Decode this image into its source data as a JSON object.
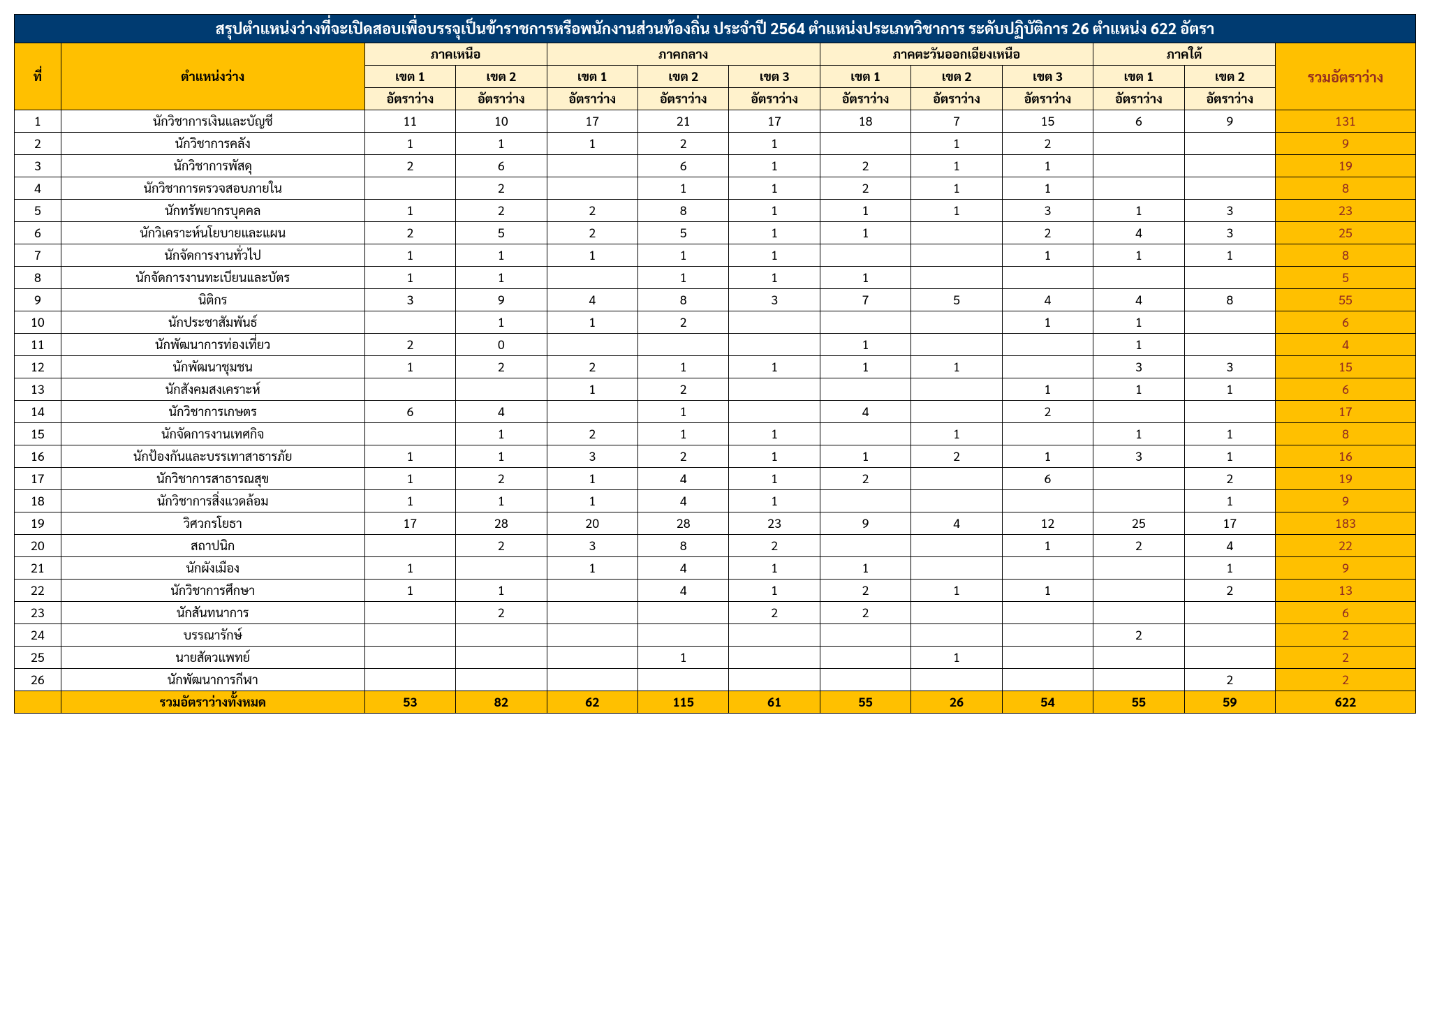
{
  "title": "สรุปตำแหน่งว่างที่จะเปิดสอบเพื่อบรรจุเป็นข้าราชการหรือพนักงานส่วนท้องถิ่น ประจำปี 2564  ตำแหน่งประเภทวิชาการ ระดับปฏิบัติการ 26 ตำแหน่ง 622 อัตรา",
  "headers": {
    "idx": "ที่",
    "position": "ตำแหน่งว่าง",
    "regions": [
      "ภาคเหนือ",
      "ภาคกลาง",
      "ภาคตะวันออกเฉียงเหนือ",
      "ภาคใต้"
    ],
    "region_spans": [
      2,
      3,
      3,
      2
    ],
    "zones": [
      "เขต 1",
      "เขต 2",
      "เขต 1",
      "เขต 2",
      "เขต 3",
      "เขต 1",
      "เขต 2",
      "เขต 3",
      "เขต 1",
      "เขต 2"
    ],
    "vacancy": "อัตราว่าง",
    "total": "รวมอัตราว่าง"
  },
  "rows": [
    {
      "n": "1",
      "pos": "นักวิชาการเงินและบัญชี",
      "v": [
        "11",
        "10",
        "17",
        "21",
        "17",
        "18",
        "7",
        "15",
        "6",
        "9"
      ],
      "t": "131"
    },
    {
      "n": "2",
      "pos": "นักวิชาการคลัง",
      "v": [
        "1",
        "1",
        "1",
        "2",
        "1",
        "",
        "1",
        "2",
        "",
        ""
      ],
      "t": "9"
    },
    {
      "n": "3",
      "pos": "นักวิชาการพัสดุ",
      "v": [
        "2",
        "6",
        "",
        "6",
        "1",
        "2",
        "1",
        "1",
        "",
        ""
      ],
      "t": "19"
    },
    {
      "n": "4",
      "pos": "นักวิชาการตรวจสอบภายใน",
      "v": [
        "",
        "2",
        "",
        "1",
        "1",
        "2",
        "1",
        "1",
        "",
        ""
      ],
      "t": "8"
    },
    {
      "n": "5",
      "pos": "นักทรัพยากรบุคคล",
      "v": [
        "1",
        "2",
        "2",
        "8",
        "1",
        "1",
        "1",
        "3",
        "1",
        "3"
      ],
      "t": "23"
    },
    {
      "n": "6",
      "pos": "นักวิเคราะห์นโยบายและแผน",
      "v": [
        "2",
        "5",
        "2",
        "5",
        "1",
        "1",
        "",
        "2",
        "4",
        "3"
      ],
      "t": "25"
    },
    {
      "n": "7",
      "pos": "นักจัดการงานทั่วไป",
      "v": [
        "1",
        "1",
        "1",
        "1",
        "1",
        "",
        "",
        "1",
        "1",
        "1"
      ],
      "t": "8"
    },
    {
      "n": "8",
      "pos": "นักจัดการงานทะเบียนและบัตร",
      "v": [
        "1",
        "1",
        "",
        "1",
        "1",
        "1",
        "",
        "",
        "",
        ""
      ],
      "t": "5"
    },
    {
      "n": "9",
      "pos": "นิติกร",
      "v": [
        "3",
        "9",
        "4",
        "8",
        "3",
        "7",
        "5",
        "4",
        "4",
        "8"
      ],
      "t": "55"
    },
    {
      "n": "10",
      "pos": "นักประชาสัมพันธ์",
      "v": [
        "",
        "1",
        "1",
        "2",
        "",
        "",
        "",
        "1",
        "1",
        ""
      ],
      "t": "6"
    },
    {
      "n": "11",
      "pos": "นักพัฒนาการท่องเที่ยว",
      "v": [
        "2",
        "0",
        "",
        "",
        "",
        "1",
        "",
        "",
        "1",
        ""
      ],
      "t": "4"
    },
    {
      "n": "12",
      "pos": "นักพัฒนาชุมชน",
      "v": [
        "1",
        "2",
        "2",
        "1",
        "1",
        "1",
        "1",
        "",
        "3",
        "3"
      ],
      "t": "15"
    },
    {
      "n": "13",
      "pos": "นักสังคมสงเคราะห์",
      "v": [
        "",
        "",
        "1",
        "2",
        "",
        "",
        "",
        "1",
        "1",
        "1"
      ],
      "t": "6"
    },
    {
      "n": "14",
      "pos": "นักวิชาการเกษตร",
      "v": [
        "6",
        "4",
        "",
        "1",
        "",
        "4",
        "",
        "2",
        "",
        ""
      ],
      "t": "17"
    },
    {
      "n": "15",
      "pos": "นักจัดการงานเทศกิจ",
      "v": [
        "",
        "1",
        "2",
        "1",
        "1",
        "",
        "1",
        "",
        "1",
        "1"
      ],
      "t": "8"
    },
    {
      "n": "16",
      "pos": "นักป้องกันและบรรเทาสาธารภัย",
      "v": [
        "1",
        "1",
        "3",
        "2",
        "1",
        "1",
        "2",
        "1",
        "3",
        "1"
      ],
      "t": "16"
    },
    {
      "n": "17",
      "pos": "นักวิชาการสาธารณสุข",
      "v": [
        "1",
        "2",
        "1",
        "4",
        "1",
        "2",
        "",
        "6",
        "",
        "2"
      ],
      "t": "19"
    },
    {
      "n": "18",
      "pos": "นักวิชาการสิ่งแวดล้อม",
      "v": [
        "1",
        "1",
        "1",
        "4",
        "1",
        "",
        "",
        "",
        "",
        "1"
      ],
      "t": "9"
    },
    {
      "n": "19",
      "pos": "วิศวกรโยธา",
      "v": [
        "17",
        "28",
        "20",
        "28",
        "23",
        "9",
        "4",
        "12",
        "25",
        "17"
      ],
      "t": "183"
    },
    {
      "n": "20",
      "pos": "สถาปนิก",
      "v": [
        "",
        "2",
        "3",
        "8",
        "2",
        "",
        "",
        "1",
        "2",
        "4"
      ],
      "t": "22"
    },
    {
      "n": "21",
      "pos": "นักผังเมือง",
      "v": [
        "1",
        "",
        "1",
        "4",
        "1",
        "1",
        "",
        "",
        "",
        "1"
      ],
      "t": "9"
    },
    {
      "n": "22",
      "pos": "นักวิชาการศึกษา",
      "v": [
        "1",
        "1",
        "",
        "4",
        "1",
        "2",
        "1",
        "1",
        "",
        "2"
      ],
      "t": "13"
    },
    {
      "n": "23",
      "pos": "นักสันทนาการ",
      "v": [
        "",
        "2",
        "",
        "",
        "2",
        "2",
        "",
        "",
        "",
        ""
      ],
      "t": "6"
    },
    {
      "n": "24",
      "pos": "บรรณารักษ์",
      "v": [
        "",
        "",
        "",
        "",
        "",
        "",
        "",
        "",
        "2",
        ""
      ],
      "t": "2"
    },
    {
      "n": "25",
      "pos": "นายสัตวแพทย์",
      "v": [
        "",
        "",
        "",
        "1",
        "",
        "",
        "1",
        "",
        "",
        ""
      ],
      "t": "2"
    },
    {
      "n": "26",
      "pos": "นักพัฒนาการกีฬา",
      "v": [
        "",
        "",
        "",
        "",
        "",
        "",
        "",
        "",
        "",
        "2"
      ],
      "t": "2"
    }
  ],
  "footer": {
    "label": "รวมอัตราว่างทั้งหมด",
    "v": [
      "53",
      "82",
      "62",
      "115",
      "61",
      "55",
      "26",
      "54",
      "55",
      "59"
    ],
    "t": "622"
  }
}
